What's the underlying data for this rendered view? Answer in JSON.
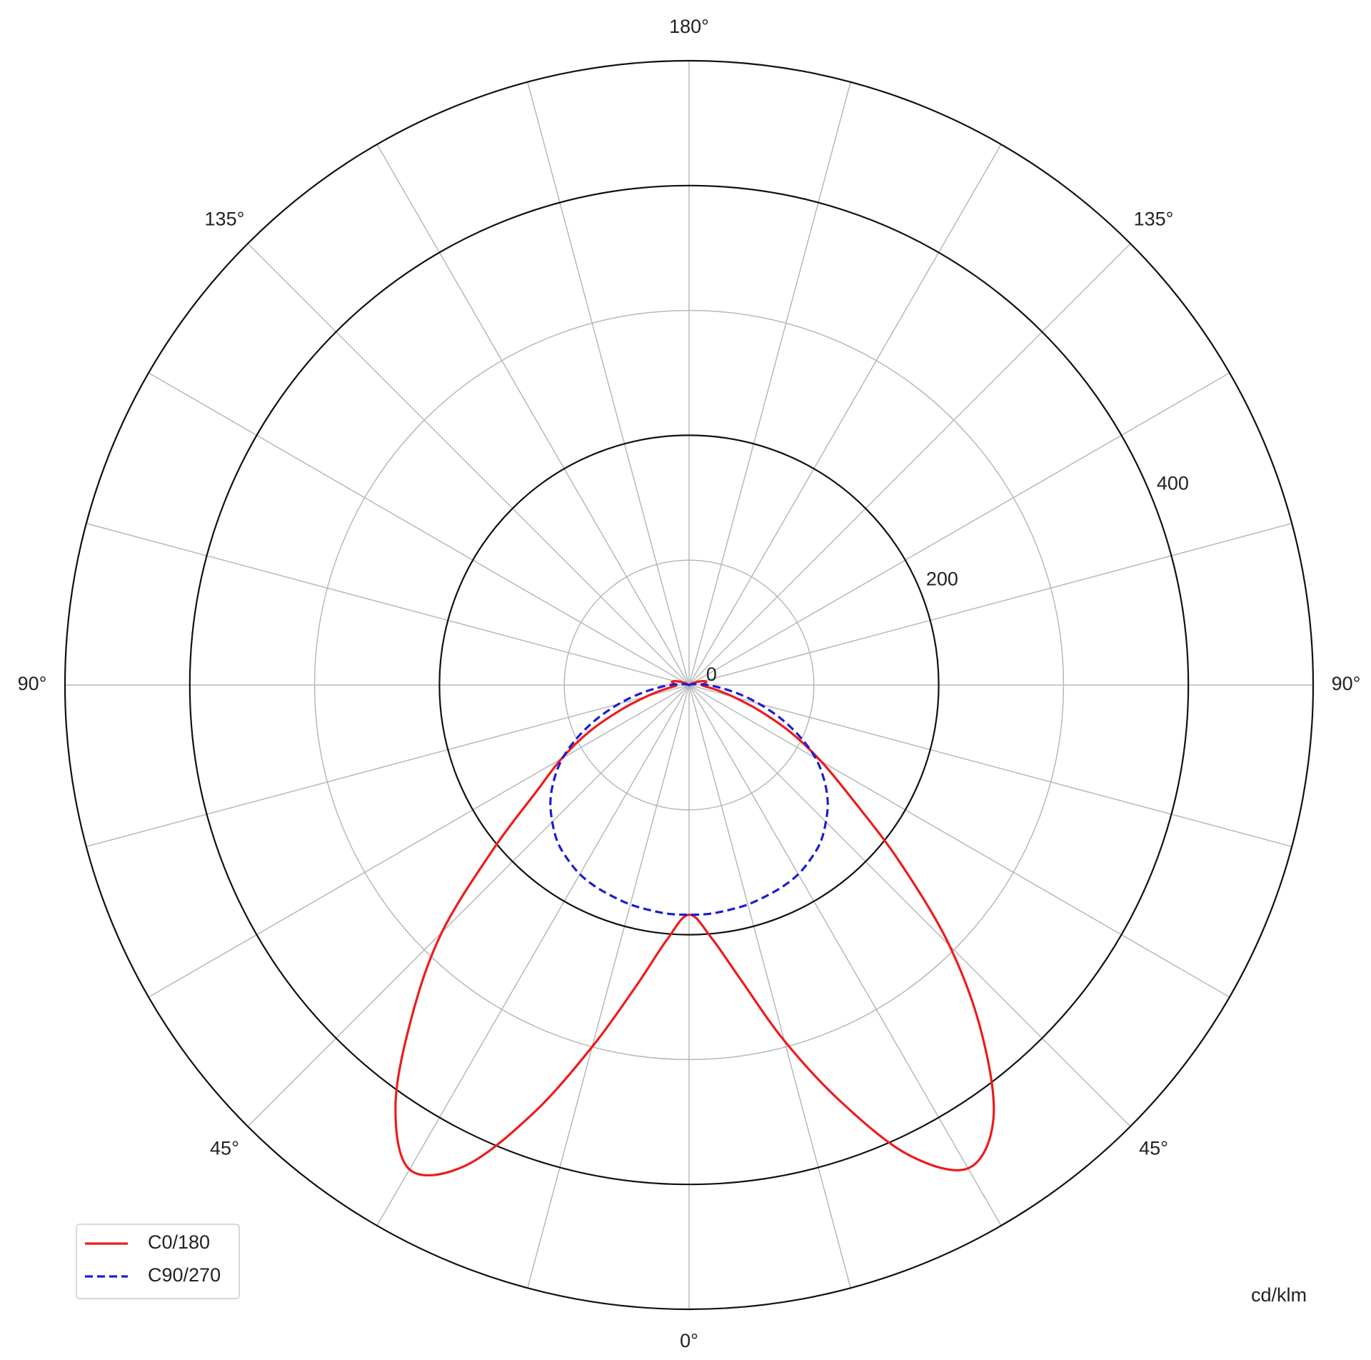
{
  "chart_data": {
    "type": "polar",
    "theta": [
      -120,
      -115,
      -110,
      -105,
      -100,
      -95,
      -90,
      -85,
      -80,
      -75,
      -70,
      -65,
      -60,
      -55,
      -50,
      -45,
      -40,
      -35,
      -30,
      -25,
      -20,
      -15,
      -10,
      -5,
      0,
      5,
      10,
      15,
      20,
      25,
      30,
      35,
      40,
      45,
      50,
      55,
      60,
      65,
      70,
      75,
      80,
      85,
      90,
      95,
      100,
      105,
      110,
      115,
      120
    ],
    "series": [
      {
        "name": "C0/180",
        "color": "#ec1c1c",
        "dash": "solid",
        "values": [
          2,
          4,
          8,
          12,
          14,
          12,
          10,
          12,
          20,
          35,
          58,
          88,
          118,
          150,
          205,
          280,
          345,
          410,
          448,
          425,
          365,
          300,
          245,
          205,
          184,
          203,
          240,
          295,
          355,
          415,
          447,
          425,
          365,
          295,
          220,
          160,
          122,
          90,
          60,
          37,
          22,
          13,
          10,
          12,
          14,
          12,
          8,
          4,
          2
        ]
      },
      {
        "name": "C90/270",
        "color": "#1c1cd6",
        "dash": "dashed",
        "values": [
          0,
          0,
          1,
          2,
          4,
          8,
          15,
          25,
          40,
          58,
          78,
          98,
          117,
          132,
          145,
          155,
          164,
          170,
          175,
          178,
          180,
          182,
          183,
          184,
          184,
          184,
          183,
          182,
          180,
          178,
          175,
          170,
          164,
          155,
          145,
          132,
          117,
          98,
          78,
          58,
          40,
          25,
          15,
          8,
          4,
          2,
          1,
          0,
          0
        ]
      }
    ],
    "rlim": [
      0,
      500
    ],
    "rticks": [
      0,
      200,
      400
    ],
    "rgrid": [
      100,
      300
    ],
    "theta_grid_step": 15,
    "thetaticks": [
      {
        "value": 180,
        "label": "180°"
      },
      {
        "value": -135,
        "label": "135°"
      },
      {
        "value": 135,
        "label": "135°"
      },
      {
        "value": -90,
        "label": "90°"
      },
      {
        "value": 90,
        "label": "90°"
      },
      {
        "value": -45,
        "label": "45°"
      },
      {
        "value": 45,
        "label": "45°"
      },
      {
        "value": 0,
        "label": "0°"
      }
    ],
    "unit_label": "cd/klm",
    "legend": "lower left"
  }
}
